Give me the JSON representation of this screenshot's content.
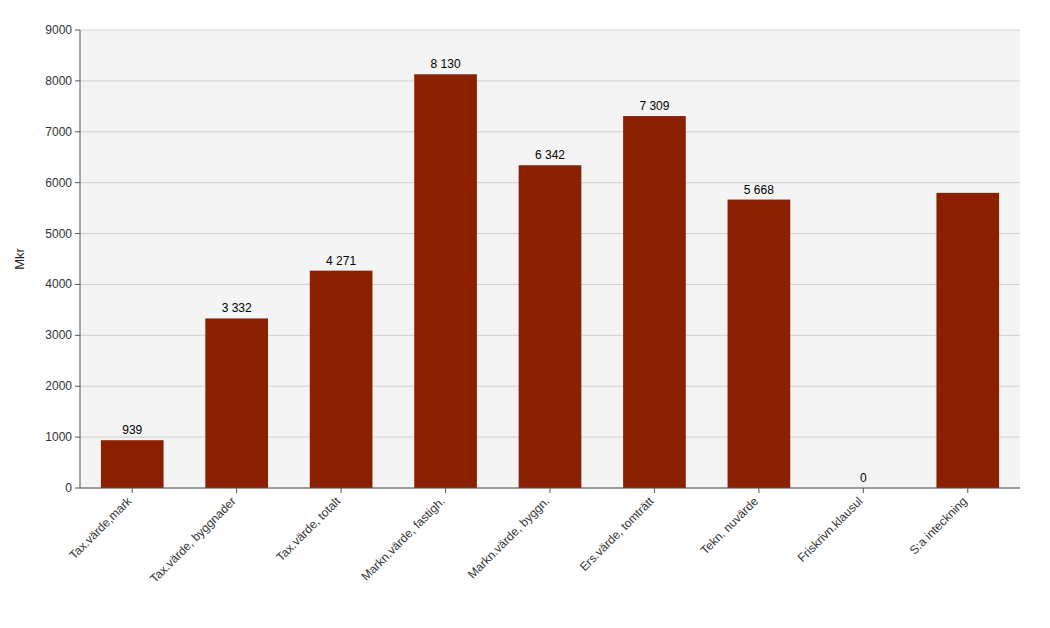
{
  "chart_data": {
    "type": "bar",
    "categories": [
      "Tax.värde,mark",
      "Tax.värde, byggnader",
      "Tax.värde, totalt",
      "Markn.värde, fastigh.",
      "Markn.värde, byggn.",
      "Ers.värde, tomträtt",
      "Tekn. nuvärde",
      "Friskrivn.klausul",
      "S:a inteckning"
    ],
    "values": [
      939,
      3332,
      4271,
      8130,
      6342,
      7309,
      5668,
      0,
      5800
    ],
    "value_labels": [
      "939",
      "3 332",
      "4 271",
      "8 130",
      "6 342",
      "7 309",
      "5 668",
      "0",
      null
    ],
    "data_labels": true,
    "color": "#8B2000",
    "ylabel": "Mkr",
    "ylim": [
      0,
      9000
    ],
    "yticks": [
      0,
      1000,
      2000,
      3000,
      4000,
      5000,
      6000,
      7000,
      8000,
      9000
    ],
    "grid": true
  }
}
